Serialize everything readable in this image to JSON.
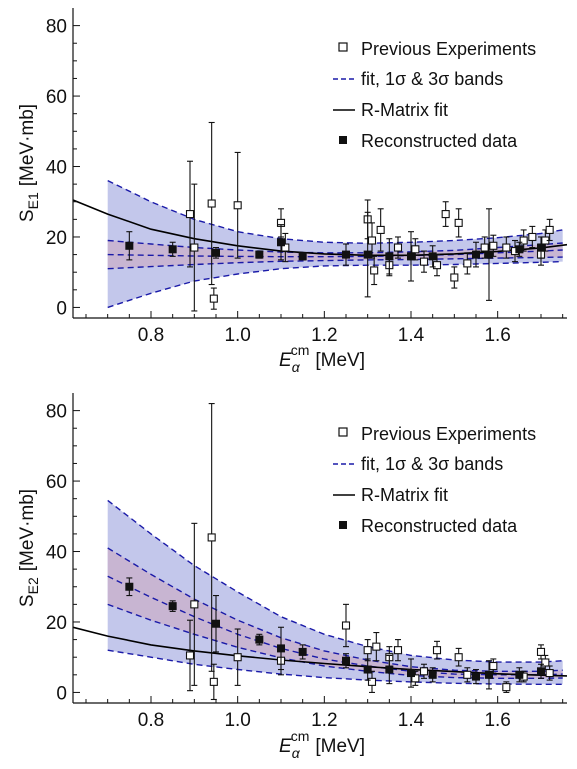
{
  "chart_data": [
    {
      "type": "scatter",
      "xlabel": {
        "base": "E",
        "sub": "α",
        "sup": "cm",
        "unit": "[MeV]"
      },
      "ylabel": {
        "base": "S",
        "sub": "E1",
        "unit": "[MeV·mb]"
      },
      "xlim": [
        0.62,
        1.76
      ],
      "ylim": [
        -3,
        85
      ],
      "xticks": [
        "0.8",
        "1.0",
        "1.2",
        "1.4",
        "1.6"
      ],
      "yticks": [
        "0",
        "20",
        "40",
        "60",
        "80"
      ],
      "legend": {
        "placement": "top-right",
        "entries": [
          {
            "label": "Previous Experiments",
            "marker": "open-square"
          },
          {
            "label": "fit, 1σ & 3σ bands",
            "marker": "dashed-line"
          },
          {
            "label": "R-Matrix fit",
            "marker": "solid-line"
          },
          {
            "label": "Reconstructed data",
            "marker": "filled-square"
          }
        ]
      },
      "colors": {
        "band": "#b8bde8",
        "inner_band": "#c9b3cf",
        "dashed": "#1a1aa8",
        "line": "#000000"
      },
      "fit": {
        "x": [
          0.7,
          0.8,
          0.9,
          1.0,
          1.1,
          1.2,
          1.3,
          1.4,
          1.5,
          1.6,
          1.7,
          1.75
        ],
        "center": [
          15.0,
          14.8,
          14.6,
          14.5,
          14.4,
          14.4,
          14.5,
          14.7,
          15.0,
          15.5,
          16.0,
          16.3
        ],
        "lo1": [
          11.0,
          11.6,
          12.2,
          12.7,
          13.1,
          13.3,
          13.5,
          13.6,
          13.8,
          14.0,
          14.2,
          14.3
        ],
        "hi1": [
          19.0,
          18.0,
          17.0,
          16.3,
          15.7,
          15.5,
          15.5,
          15.8,
          16.2,
          17.0,
          17.8,
          18.3
        ],
        "lo3": [
          0.0,
          4.0,
          7.5,
          9.5,
          11.0,
          11.8,
          12.0,
          12.0,
          12.2,
          12.5,
          12.8,
          13.0
        ],
        "hi3": [
          36.0,
          30.0,
          25.0,
          21.5,
          19.5,
          18.5,
          18.2,
          18.5,
          19.0,
          19.8,
          21.0,
          22.0
        ]
      },
      "rmatrix": {
        "x": [
          0.62,
          0.7,
          0.8,
          0.9,
          1.0,
          1.1,
          1.2,
          1.3,
          1.4,
          1.5,
          1.6,
          1.7,
          1.76
        ],
        "y": [
          30.5,
          26.5,
          22.2,
          19.5,
          17.5,
          16.0,
          15.2,
          14.8,
          14.8,
          15.2,
          15.9,
          16.9,
          17.8
        ]
      },
      "previous_experiments": [
        {
          "x": 0.89,
          "y": 26.5,
          "err": 15.0
        },
        {
          "x": 0.9,
          "y": 17.0,
          "err": 18.0
        },
        {
          "x": 0.94,
          "y": 29.5,
          "err": 23.0
        },
        {
          "x": 0.945,
          "y": 2.5,
          "err": 3.0
        },
        {
          "x": 1.0,
          "y": 29.0,
          "err": 15.0
        },
        {
          "x": 1.1,
          "y": 24.0,
          "err": 4.0
        },
        {
          "x": 1.11,
          "y": 17.0,
          "err": 4.0
        },
        {
          "x": 1.3,
          "y": 25.0,
          "err": 5.5
        },
        {
          "x": 1.31,
          "y": 19.0,
          "err": 5.0
        },
        {
          "x": 1.315,
          "y": 10.5,
          "err": 4.0
        },
        {
          "x": 1.33,
          "y": 22.0,
          "err": 6.0
        },
        {
          "x": 1.35,
          "y": 12.0,
          "err": 3.0
        },
        {
          "x": 1.37,
          "y": 17.0,
          "err": 3.0
        },
        {
          "x": 1.41,
          "y": 16.5,
          "err": 3.0
        },
        {
          "x": 1.43,
          "y": 13.0,
          "err": 3.0
        },
        {
          "x": 1.46,
          "y": 12.0,
          "err": 3.0
        },
        {
          "x": 1.48,
          "y": 26.5,
          "err": 3.5
        },
        {
          "x": 1.5,
          "y": 8.5,
          "err": 3.0
        },
        {
          "x": 1.51,
          "y": 24.0,
          "err": 4.0
        },
        {
          "x": 1.53,
          "y": 12.5,
          "err": 3.0
        },
        {
          "x": 1.57,
          "y": 17.0,
          "err": 3.0
        },
        {
          "x": 1.59,
          "y": 17.5,
          "err": 3.0
        },
        {
          "x": 1.62,
          "y": 17.0,
          "err": 3.0
        },
        {
          "x": 1.64,
          "y": 16.0,
          "err": 3.0
        },
        {
          "x": 1.66,
          "y": 19.0,
          "err": 3.0
        },
        {
          "x": 1.68,
          "y": 20.0,
          "err": 3.0
        },
        {
          "x": 1.7,
          "y": 15.0,
          "err": 3.0
        },
        {
          "x": 1.71,
          "y": 19.0,
          "err": 3.0
        },
        {
          "x": 1.72,
          "y": 22.0,
          "err": 3.0
        }
      ],
      "reconstructed": [
        {
          "x": 0.75,
          "y": 17.5,
          "err": 4.0
        },
        {
          "x": 0.85,
          "y": 16.5,
          "err": 2.0
        },
        {
          "x": 0.95,
          "y": 15.5,
          "err": 1.5
        },
        {
          "x": 1.05,
          "y": 15.0,
          "err": 1.0
        },
        {
          "x": 1.1,
          "y": 18.5,
          "err": 5.0
        },
        {
          "x": 1.15,
          "y": 14.5,
          "err": 1.0
        },
        {
          "x": 1.25,
          "y": 15.0,
          "err": 3.0
        },
        {
          "x": 1.3,
          "y": 15.0,
          "err": 12.0
        },
        {
          "x": 1.35,
          "y": 14.5,
          "err": 5.0
        },
        {
          "x": 1.4,
          "y": 14.5,
          "err": 7.0
        },
        {
          "x": 1.45,
          "y": 14.5,
          "err": 3.0
        },
        {
          "x": 1.55,
          "y": 15.0,
          "err": 3.5
        },
        {
          "x": 1.58,
          "y": 15.0,
          "err": 13.0
        },
        {
          "x": 1.65,
          "y": 16.5,
          "err": 2.0
        },
        {
          "x": 1.7,
          "y": 17.0,
          "err": 3.0
        }
      ]
    },
    {
      "type": "scatter",
      "xlabel": {
        "base": "E",
        "sub": "α",
        "sup": "cm",
        "unit": "[MeV]"
      },
      "ylabel": {
        "base": "S",
        "sub": "E2",
        "unit": "[MeV·mb]"
      },
      "xlim": [
        0.62,
        1.76
      ],
      "ylim": [
        -3,
        85
      ],
      "xticks": [
        "0.8",
        "1.0",
        "1.2",
        "1.4",
        "1.6"
      ],
      "yticks": [
        "0",
        "20",
        "40",
        "60",
        "80"
      ],
      "legend": {
        "placement": "top-right",
        "entries": [
          {
            "label": "Previous Experiments",
            "marker": "open-square"
          },
          {
            "label": "fit, 1σ & 3σ bands",
            "marker": "dashed-line"
          },
          {
            "label": "R-Matrix fit",
            "marker": "solid-line"
          },
          {
            "label": "Reconstructed data",
            "marker": "filled-square"
          }
        ]
      },
      "colors": {
        "band": "#b8bde8",
        "inner_band": "#c9b3cf",
        "dashed": "#1a1aa8",
        "line": "#000000"
      },
      "fit": {
        "x": [
          0.7,
          0.8,
          0.9,
          1.0,
          1.1,
          1.2,
          1.3,
          1.4,
          1.5,
          1.6,
          1.7,
          1.75
        ],
        "center": [
          33.0,
          27.0,
          21.5,
          16.5,
          12.5,
          9.5,
          7.5,
          6.0,
          5.2,
          5.0,
          5.0,
          5.2
        ],
        "lo1": [
          25.0,
          20.5,
          16.5,
          12.8,
          9.8,
          7.5,
          6.0,
          4.8,
          4.2,
          4.0,
          4.0,
          4.1
        ],
        "hi1": [
          41.0,
          33.5,
          26.5,
          20.5,
          15.5,
          11.8,
          9.2,
          7.3,
          6.3,
          6.0,
          6.0,
          6.3
        ],
        "lo3": [
          12.0,
          10.0,
          8.0,
          6.5,
          5.2,
          4.2,
          3.5,
          3.0,
          2.6,
          2.4,
          2.3,
          2.3
        ],
        "hi3": [
          54.5,
          45.0,
          36.0,
          28.5,
          21.5,
          16.5,
          13.0,
          10.5,
          9.2,
          8.6,
          8.6,
          9.0
        ]
      },
      "rmatrix": {
        "x": [
          0.62,
          0.7,
          0.8,
          0.9,
          1.0,
          1.1,
          1.2,
          1.3,
          1.4,
          1.5,
          1.6,
          1.7,
          1.76
        ],
        "y": [
          18.5,
          16.0,
          13.5,
          11.8,
          10.4,
          9.2,
          8.2,
          7.3,
          6.5,
          5.9,
          5.3,
          4.9,
          4.7
        ]
      },
      "previous_experiments": [
        {
          "x": 0.89,
          "y": 10.5,
          "err": 10.0
        },
        {
          "x": 0.9,
          "y": 25.0,
          "err": 23.0
        },
        {
          "x": 0.94,
          "y": 44.0,
          "err": 38.0
        },
        {
          "x": 0.945,
          "y": 3.0,
          "err": 5.0
        },
        {
          "x": 1.0,
          "y": 10.0,
          "err": 8.0
        },
        {
          "x": 1.1,
          "y": 9.0,
          "err": 4.0
        },
        {
          "x": 1.25,
          "y": 19.0,
          "err": 6.0
        },
        {
          "x": 1.3,
          "y": 12.0,
          "err": 3.0
        },
        {
          "x": 1.31,
          "y": 3.0,
          "err": 3.0
        },
        {
          "x": 1.32,
          "y": 13.0,
          "err": 4.0
        },
        {
          "x": 1.35,
          "y": 10.0,
          "err": 3.0
        },
        {
          "x": 1.37,
          "y": 12.0,
          "err": 3.0
        },
        {
          "x": 1.41,
          "y": 4.0,
          "err": 2.0
        },
        {
          "x": 1.43,
          "y": 6.0,
          "err": 2.0
        },
        {
          "x": 1.46,
          "y": 12.0,
          "err": 2.5
        },
        {
          "x": 1.51,
          "y": 10.0,
          "err": 2.5
        },
        {
          "x": 1.53,
          "y": 5.0,
          "err": 2.0
        },
        {
          "x": 1.59,
          "y": 7.5,
          "err": 2.0
        },
        {
          "x": 1.62,
          "y": 1.5,
          "err": 1.5
        },
        {
          "x": 1.66,
          "y": 4.5,
          "err": 1.5
        },
        {
          "x": 1.7,
          "y": 11.5,
          "err": 2.0
        },
        {
          "x": 1.71,
          "y": 8.5,
          "err": 2.0
        },
        {
          "x": 1.72,
          "y": 5.5,
          "err": 2.0
        }
      ],
      "reconstructed": [
        {
          "x": 0.75,
          "y": 30.0,
          "err": 2.5
        },
        {
          "x": 0.85,
          "y": 24.5,
          "err": 1.5
        },
        {
          "x": 0.95,
          "y": 19.5,
          "err": 8.0
        },
        {
          "x": 1.05,
          "y": 15.0,
          "err": 1.5
        },
        {
          "x": 1.1,
          "y": 12.5,
          "err": 6.0
        },
        {
          "x": 1.15,
          "y": 11.5,
          "err": 2.0
        },
        {
          "x": 1.25,
          "y": 9.0,
          "err": 2.0
        },
        {
          "x": 1.3,
          "y": 6.5,
          "err": 3.0
        },
        {
          "x": 1.35,
          "y": 6.5,
          "err": 4.0
        },
        {
          "x": 1.4,
          "y": 5.5,
          "err": 4.0
        },
        {
          "x": 1.45,
          "y": 5.0,
          "err": 2.0
        },
        {
          "x": 1.55,
          "y": 4.5,
          "err": 2.0
        },
        {
          "x": 1.58,
          "y": 5.0,
          "err": 4.0
        },
        {
          "x": 1.65,
          "y": 5.0,
          "err": 2.0
        },
        {
          "x": 1.7,
          "y": 6.0,
          "err": 2.0
        }
      ]
    }
  ]
}
